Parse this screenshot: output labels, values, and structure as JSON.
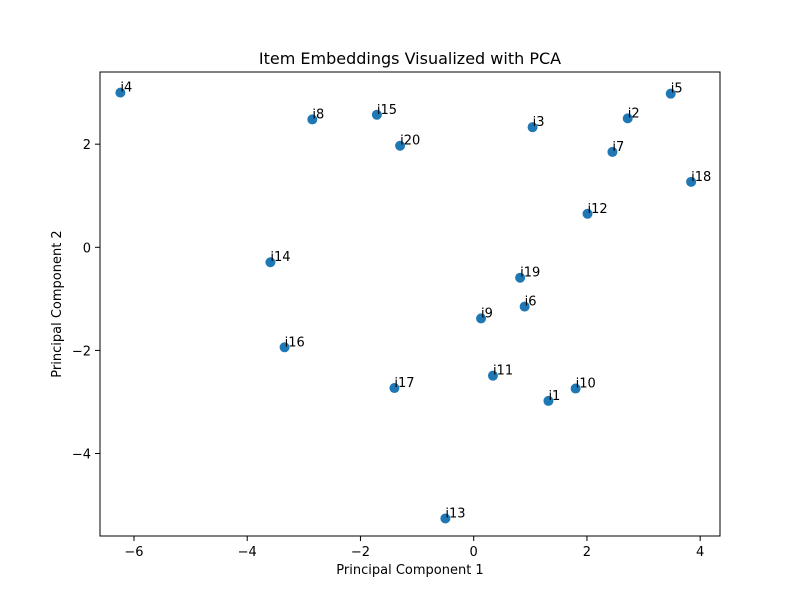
{
  "chart_data": {
    "type": "scatter",
    "title": "Item Embeddings Visualized with PCA",
    "xlabel": "Principal Component 1",
    "ylabel": "Principal Component 2",
    "xlim": [
      -6.6,
      4.35
    ],
    "ylim": [
      -5.6,
      3.4
    ],
    "xticks": [
      -6,
      -4,
      -2,
      0,
      2,
      4
    ],
    "yticks": [
      -4,
      -2,
      0,
      2
    ],
    "grid": false,
    "marker_color": "#1f77b4",
    "points": [
      {
        "label": "i1",
        "x": 1.32,
        "y": -2.98
      },
      {
        "label": "i2",
        "x": 2.72,
        "y": 2.5
      },
      {
        "label": "i3",
        "x": 1.04,
        "y": 2.33
      },
      {
        "label": "i4",
        "x": -6.24,
        "y": 3.0
      },
      {
        "label": "i5",
        "x": 3.48,
        "y": 2.98
      },
      {
        "label": "i6",
        "x": 0.9,
        "y": -1.15
      },
      {
        "label": "i7",
        "x": 2.45,
        "y": 1.85
      },
      {
        "label": "i8",
        "x": -2.85,
        "y": 2.48
      },
      {
        "label": "i9",
        "x": 0.13,
        "y": -1.38
      },
      {
        "label": "i10",
        "x": 1.8,
        "y": -2.74
      },
      {
        "label": "i11",
        "x": 0.34,
        "y": -2.49
      },
      {
        "label": "i12",
        "x": 2.01,
        "y": 0.65
      },
      {
        "label": "i13",
        "x": -0.5,
        "y": -5.26
      },
      {
        "label": "i14",
        "x": -3.59,
        "y": -0.29
      },
      {
        "label": "i15",
        "x": -1.71,
        "y": 2.57
      },
      {
        "label": "i16",
        "x": -3.34,
        "y": -1.94
      },
      {
        "label": "i17",
        "x": -1.4,
        "y": -2.73
      },
      {
        "label": "i18",
        "x": 3.84,
        "y": 1.27
      },
      {
        "label": "i19",
        "x": 0.82,
        "y": -0.59
      },
      {
        "label": "i20",
        "x": -1.3,
        "y": 1.97
      }
    ]
  }
}
